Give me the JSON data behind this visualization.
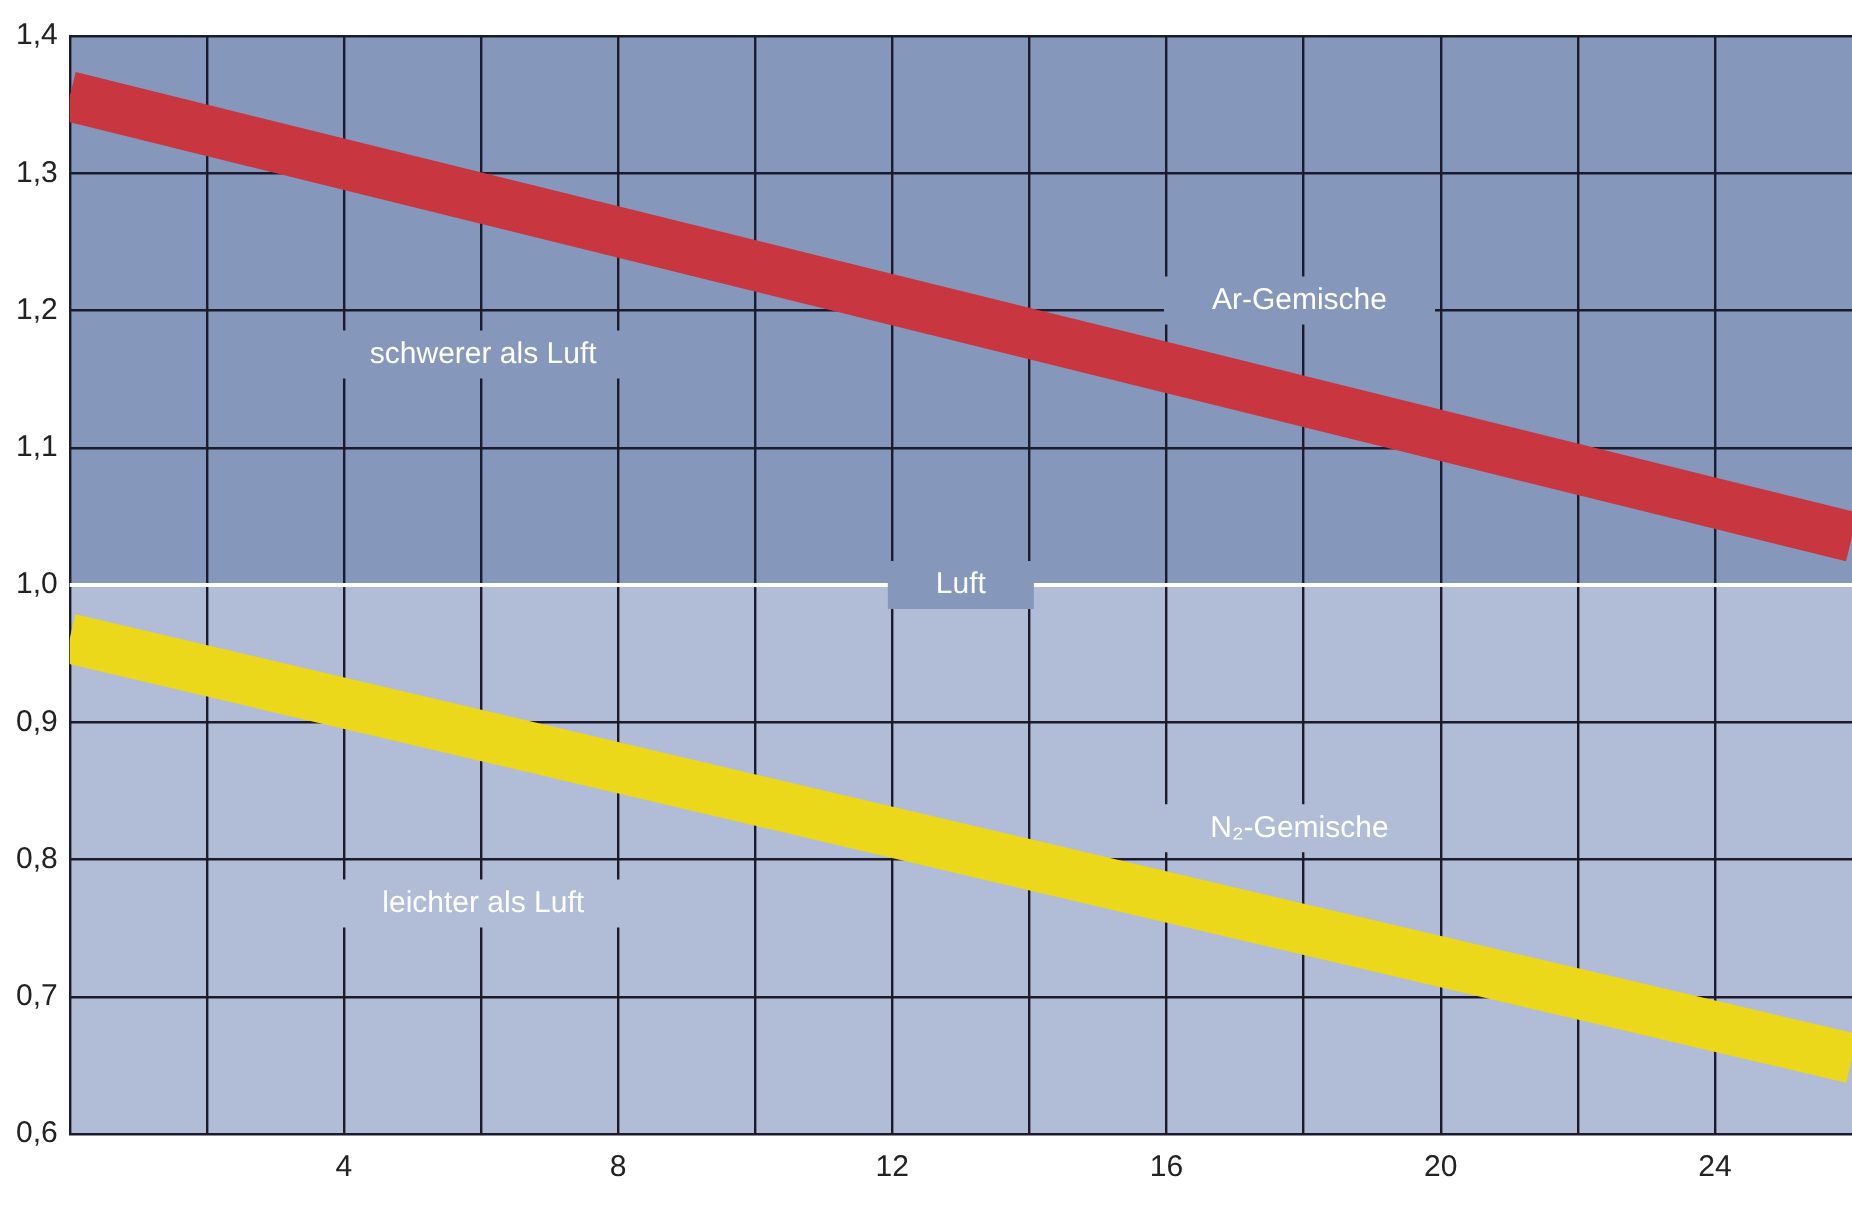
{
  "chart_data": {
    "type": "line",
    "x": [
      0,
      26
    ],
    "series": [
      {
        "name": "Ar-Gemische",
        "color": "#c8363f",
        "values": [
          1.356,
          1.035
        ]
      },
      {
        "name": "N₂-Gemische",
        "color": "#ecd81a",
        "values": [
          0.961,
          0.655
        ]
      }
    ],
    "xlim": [
      0,
      26
    ],
    "xticks": [
      {
        "value": 0,
        "label": null
      },
      {
        "value": 2,
        "label": null
      },
      4,
      {
        "value": 6,
        "label": null
      },
      8,
      {
        "value": 10,
        "label": null
      },
      12,
      {
        "value": 14,
        "label": null
      },
      16,
      {
        "value": 18,
        "label": null
      },
      20,
      {
        "value": 22,
        "label": null
      },
      24
    ],
    "ylim": [
      0.6,
      1.4
    ],
    "yticks": [
      {
        "value": 0.6,
        "label": "0,6"
      },
      {
        "value": 0.7,
        "label": "0,7"
      },
      {
        "value": 0.8,
        "label": "0,8"
      },
      {
        "value": 0.9,
        "label": "0,9"
      },
      {
        "value": 1.0,
        "label": "1,0"
      },
      {
        "value": 1.1,
        "label": "1,1"
      },
      {
        "value": 1.2,
        "label": "1,2"
      },
      {
        "value": 1.3,
        "label": "1,3"
      },
      {
        "value": 1.4,
        "label": "1,4"
      }
    ],
    "grid": true,
    "legend": false,
    "marker": "none",
    "line_style": "solid",
    "ref_lines": [
      {
        "axis": "y",
        "value": 1.0,
        "label": "Luft",
        "color": "#ffffff"
      }
    ],
    "bands": [
      {
        "axis": "y",
        "from": 1.0,
        "to": 1.4,
        "label": "schwerer als Luft",
        "color": "#8597bb"
      },
      {
        "axis": "y",
        "from": 0.6,
        "to": 1.0,
        "label": "leichter als Luft",
        "color": "#b1bcd6"
      }
    ]
  }
}
